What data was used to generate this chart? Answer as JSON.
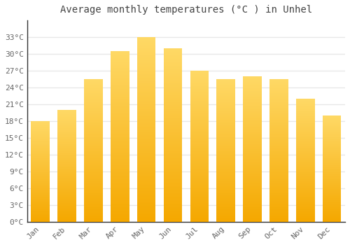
{
  "title": "Average monthly temperatures (°C ) in Unhel",
  "months": [
    "Jan",
    "Feb",
    "Mar",
    "Apr",
    "May",
    "Jun",
    "Jul",
    "Aug",
    "Sep",
    "Oct",
    "Nov",
    "Dec"
  ],
  "values": [
    18.0,
    20.0,
    25.5,
    30.5,
    33.0,
    31.0,
    27.0,
    25.5,
    26.0,
    25.5,
    22.0,
    19.0
  ],
  "ylim": [
    0,
    36
  ],
  "yticks": [
    0,
    3,
    6,
    9,
    12,
    15,
    18,
    21,
    24,
    27,
    30,
    33
  ],
  "ytick_labels": [
    "0°C",
    "3°C",
    "6°C",
    "9°C",
    "12°C",
    "15°C",
    "18°C",
    "21°C",
    "24°C",
    "27°C",
    "30°C",
    "33°C"
  ],
  "background_color": "#ffffff",
  "grid_color": "#e8e8e8",
  "title_fontsize": 10,
  "tick_fontsize": 8,
  "bar_color_bottom": "#F5A800",
  "bar_color_top": "#FFD966",
  "bar_width": 0.7
}
